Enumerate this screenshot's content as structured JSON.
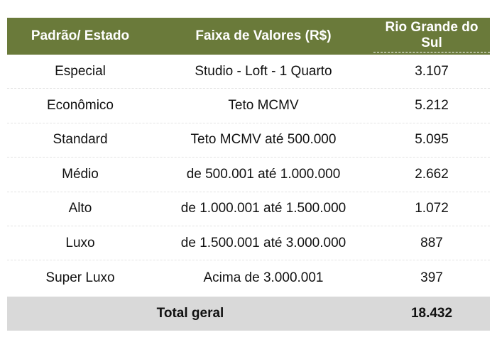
{
  "header": {
    "col1": "Padrão/ Estado",
    "col2": "Faixa de Valores (R$)",
    "col3": "Rio Grande do Sul"
  },
  "rows": [
    {
      "padrao": "Especial",
      "faixa": "Studio - Loft - 1 Quarto",
      "valor": "3.107"
    },
    {
      "padrao": "Econômico",
      "faixa": "Teto MCMV",
      "valor": "5.212"
    },
    {
      "padrao": "Standard",
      "faixa": "Teto MCMV até 500.000",
      "valor": "5.095"
    },
    {
      "padrao": "Médio",
      "faixa": "de 500.001 até 1.000.000",
      "valor": "2.662"
    },
    {
      "padrao": "Alto",
      "faixa": "de 1.000.001 até 1.500.000",
      "valor": "1.072"
    },
    {
      "padrao": "Luxo",
      "faixa": "de 1.500.001 até 3.000.000",
      "valor": "887"
    },
    {
      "padrao": "Super Luxo",
      "faixa": "Acima de 3.000.001",
      "valor": "397"
    }
  ],
  "total": {
    "label": "Total geral",
    "value": "18.432"
  },
  "colors": {
    "header_bg": "#6a7a3a",
    "header_text": "#ffffff",
    "total_bg": "#d9d9d9"
  }
}
